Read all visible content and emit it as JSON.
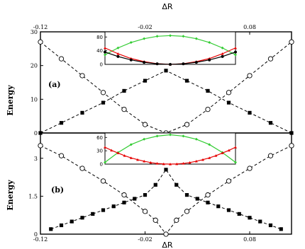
{
  "figure": {
    "top_xlabel": "ΔR",
    "bottom_xlabel": "ΔR"
  },
  "chart_data": [
    {
      "type": "line",
      "panel_label": "(a)",
      "ylabel": "Energy",
      "xlabel": "ΔR",
      "xlim": [
        -0.12,
        0.12
      ],
      "ylim": [
        0,
        30
      ],
      "xticks": [
        "-0.12",
        "-0.02",
        "0.08"
      ],
      "yticks": [
        "0",
        "10",
        "20",
        "30"
      ],
      "series": [
        {
          "marker": "open-circle",
          "style": "dashed",
          "color": "#000000",
          "x": [
            -0.12,
            -0.1,
            -0.08,
            -0.06,
            -0.04,
            -0.02,
            0,
            0.02,
            0.04,
            0.06,
            0.08,
            0.1,
            0.12
          ],
          "y": [
            27,
            22,
            17,
            12,
            7,
            2.5,
            0,
            2.5,
            7,
            12,
            17,
            22,
            27
          ]
        },
        {
          "marker": "filled-square",
          "style": "dashed",
          "color": "#000000",
          "x": [
            -0.12,
            -0.1,
            -0.08,
            -0.06,
            -0.04,
            -0.02,
            0,
            0.02,
            0.04,
            0.06,
            0.08,
            0.1,
            0.12
          ],
          "y": [
            0,
            3,
            6,
            9,
            12.5,
            15.5,
            18.5,
            15.5,
            12.5,
            9,
            6,
            3,
            0
          ]
        }
      ],
      "inset": {
        "yticks": [
          "0",
          "40",
          "80"
        ],
        "ylim": [
          0,
          95
        ],
        "series": [
          {
            "color": "#33cc33",
            "marker": "diamond",
            "x": [
              -0.1,
              -0.08,
              -0.06,
              -0.04,
              -0.02,
              0,
              0.02,
              0.04,
              0.06,
              0.08,
              0.1
            ],
            "y": [
              28,
              48,
              64,
              75,
              82,
              84,
              82,
              75,
              64,
              48,
              28
            ]
          },
          {
            "color": "#e60000",
            "marker": "triangle",
            "x": [
              -0.1,
              -0.08,
              -0.06,
              -0.04,
              -0.02,
              0,
              0.02,
              0.04,
              0.06,
              0.08,
              0.1
            ],
            "y": [
              48,
              31,
              17,
              8,
              2,
              0,
              2,
              8,
              17,
              31,
              48
            ]
          },
          {
            "color": "#000000",
            "marker": "circle",
            "x": [
              -0.1,
              -0.08,
              -0.06,
              -0.04,
              -0.02,
              0,
              0.02,
              0.04,
              0.06,
              0.08,
              0.1
            ],
            "y": [
              36,
              23,
              13,
              6,
              1.5,
              0,
              1.5,
              6,
              13,
              23,
              36
            ]
          }
        ]
      }
    },
    {
      "type": "line",
      "panel_label": "(b)",
      "ylabel": "Energy",
      "xlabel": "ΔR",
      "xlim": [
        -0.12,
        0.12
      ],
      "ylim": [
        0,
        4
      ],
      "xticks": [
        "-0.12",
        "-0.02",
        "0.08"
      ],
      "yticks": [
        "0",
        "1.5",
        "3"
      ],
      "series": [
        {
          "marker": "open-circle",
          "style": "dashed",
          "color": "#000000",
          "x": [
            -0.12,
            -0.1,
            -0.08,
            -0.06,
            -0.04,
            -0.02,
            -0.01,
            0,
            0.01,
            0.02,
            0.04,
            0.06,
            0.08,
            0.1,
            0.12
          ],
          "y": [
            3.5,
            3.1,
            2.6,
            2.1,
            1.55,
            0.9,
            0.55,
            0,
            0.55,
            0.9,
            1.55,
            2.1,
            2.6,
            3.1,
            3.5
          ]
        },
        {
          "marker": "filled-square",
          "style": "dashed",
          "color": "#000000",
          "x": [
            -0.11,
            -0.1,
            -0.09,
            -0.08,
            -0.07,
            -0.06,
            -0.05,
            -0.04,
            -0.03,
            -0.02,
            -0.01,
            0,
            0.01,
            0.02,
            0.03,
            0.04,
            0.05,
            0.06,
            0.07,
            0.08,
            0.09,
            0.1,
            0.11
          ],
          "y": [
            0.2,
            0.35,
            0.5,
            0.65,
            0.8,
            0.95,
            1.1,
            1.25,
            1.4,
            1.55,
            1.95,
            2.55,
            1.95,
            1.55,
            1.4,
            1.25,
            1.1,
            0.95,
            0.8,
            0.65,
            0.5,
            0.35,
            0.2
          ]
        }
      ],
      "inset": {
        "yticks": [
          "0",
          "30",
          "60"
        ],
        "ylim": [
          0,
          70
        ],
        "series": [
          {
            "color": "#33cc33",
            "marker": "diamond",
            "x": [
              -0.1,
              -0.08,
              -0.06,
              -0.04,
              -0.02,
              0,
              0.02,
              0.04,
              0.06,
              0.08,
              0.1
            ],
            "y": [
              4,
              26,
              44,
              56,
              63,
              66,
              63,
              56,
              44,
              26,
              4
            ]
          },
          {
            "color": "#e60000",
            "marker": "triangle",
            "x": [
              -0.1,
              -0.09,
              -0.08,
              -0.07,
              -0.06,
              -0.05,
              -0.04,
              -0.03,
              -0.02,
              -0.01,
              0,
              0.01,
              0.02,
              0.03,
              0.04,
              0.05,
              0.06,
              0.07,
              0.08,
              0.09,
              0.1
            ],
            "y": [
              38,
              31,
              25,
              19,
              14,
              10,
              6.5,
              3.5,
              1.5,
              0.4,
              0,
              0.4,
              1.5,
              3.5,
              6.5,
              10,
              14,
              19,
              25,
              31,
              38
            ]
          }
        ]
      }
    }
  ]
}
